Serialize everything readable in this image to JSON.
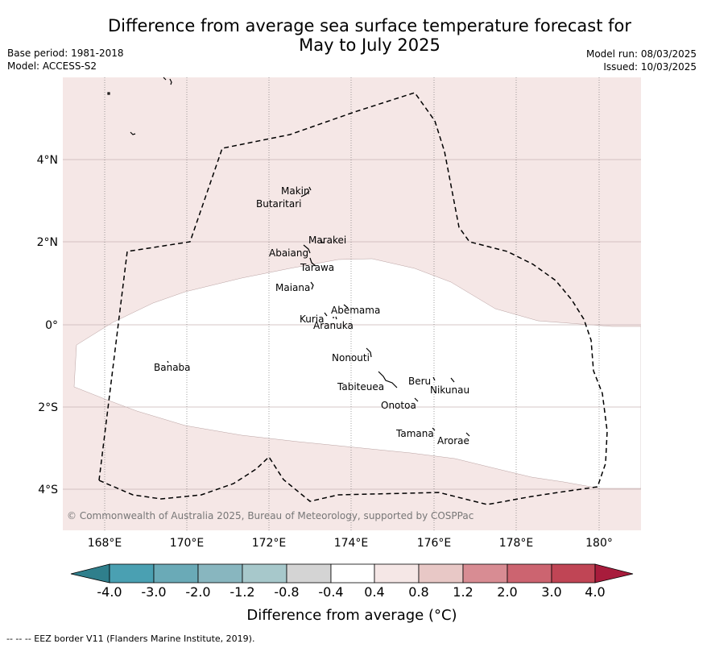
{
  "title_line1": "Difference from average sea surface temperature forecast for",
  "title_line2": "May to July 2025",
  "base_period": "Base period: 1981-2018",
  "model": "Model: ACCESS-S2",
  "model_run": "Model run: 08/03/2025",
  "issued": "Issued: 10/03/2025",
  "lat_ticks": [
    "4°N",
    "2°N",
    "0°",
    "2°S",
    "4°S"
  ],
  "lon_ticks": [
    "168°E",
    "170°E",
    "172°E",
    "174°E",
    "176°E",
    "178°E",
    "180°"
  ],
  "places": [
    "Makin",
    "Butaritari",
    "Marakei",
    "Abaiang",
    "Tarawa",
    "Maiana",
    "Abemama",
    "Kuria",
    "Aranuka",
    "Banaba",
    "Nonouti",
    "Beru",
    "Nikunau",
    "Tabiteuea",
    "Onotoa",
    "Tamana",
    "Arorae"
  ],
  "copyright": "© Commonwealth of Australia 2025, Bureau of Meteorology, supported by COSPPac",
  "colorbar": {
    "labels": [
      "-4.0",
      "-3.0",
      "-2.0",
      "-1.2",
      "-0.8",
      "-0.4",
      "0.4",
      "0.8",
      "1.2",
      "2.0",
      "3.0",
      "4.0"
    ],
    "colors": [
      "#2f7f8c",
      "#4aa0b2",
      "#6aaab7",
      "#88b6bf",
      "#a7c8cb",
      "#d4d4d4",
      "#ffffff",
      "#f5e7e6",
      "#e8c8c6",
      "#d88c93",
      "#cc6470",
      "#c04555",
      "#a81c3c"
    ],
    "title": "Difference from average (°C)"
  },
  "footnote": "-- -- -- EEZ border V11 (Flanders Marine Institute, 2019)."
}
